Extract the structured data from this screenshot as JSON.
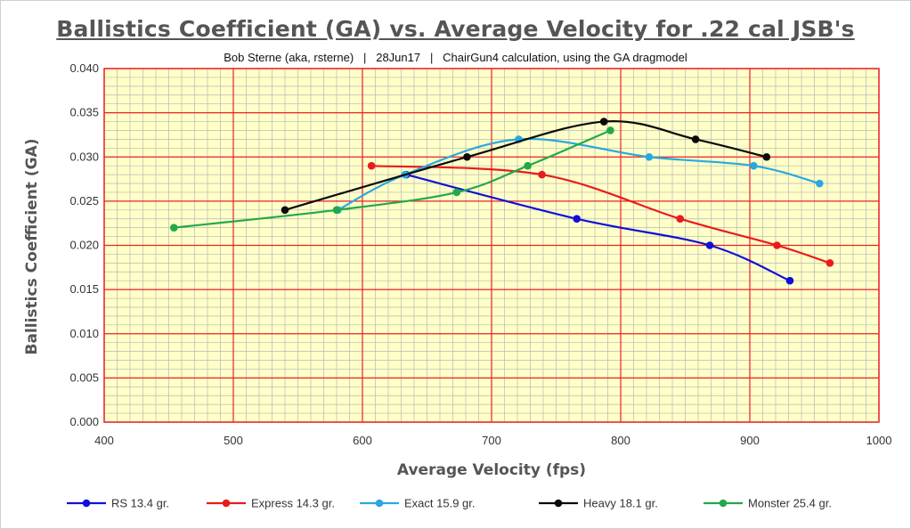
{
  "chart_data": {
    "type": "line",
    "title": "Ballistics Coefficient (GA) vs. Average Velocity for .22 cal JSB's",
    "subtitle": "Bob Sterne (aka, rsterne)   |   28Jun17   |   ChairGun4 calculation, using the GA dragmodel",
    "xlabel": "Average Velocity (fps)",
    "ylabel": "Ballistics Coefficient (GA)",
    "xlim": [
      400,
      1000
    ],
    "ylim": [
      0.0,
      0.04
    ],
    "x_ticks": [
      "400",
      "500",
      "600",
      "700",
      "800",
      "900",
      "1000"
    ],
    "y_ticks": [
      "0.000",
      "0.005",
      "0.010",
      "0.015",
      "0.020",
      "0.025",
      "0.030",
      "0.035",
      "0.040"
    ],
    "grid": "major and minor",
    "plot_background": "#ffffc8",
    "grid_color": "#e8202a",
    "legend_position": "bottom",
    "series": [
      {
        "name": "RS 13.4 gr.",
        "color": "#1010d8",
        "x": [
          634,
          766,
          869,
          931
        ],
        "y": [
          0.028,
          0.023,
          0.02,
          0.016
        ]
      },
      {
        "name": "Express 14.3 gr.",
        "color": "#e81c1c",
        "x": [
          607,
          739,
          846,
          921,
          962
        ],
        "y": [
          0.029,
          0.028,
          0.023,
          0.02,
          0.018
        ]
      },
      {
        "name": "Exact 15.9 gr.",
        "color": "#28a8e0",
        "x": [
          581,
          633,
          721,
          822,
          903,
          954
        ],
        "y": [
          0.024,
          0.028,
          0.032,
          0.03,
          0.029,
          0.027
        ]
      },
      {
        "name": "Heavy 18.1 gr.",
        "color": "#0a0a0a",
        "x": [
          540,
          681,
          787,
          858,
          913
        ],
        "y": [
          0.024,
          0.03,
          0.034,
          0.032,
          0.03
        ]
      },
      {
        "name": "Monster 25.4 gr.",
        "color": "#22a84a",
        "x": [
          454,
          580,
          673,
          728,
          792
        ],
        "y": [
          0.022,
          0.024,
          0.026,
          0.029,
          0.033
        ]
      }
    ]
  }
}
